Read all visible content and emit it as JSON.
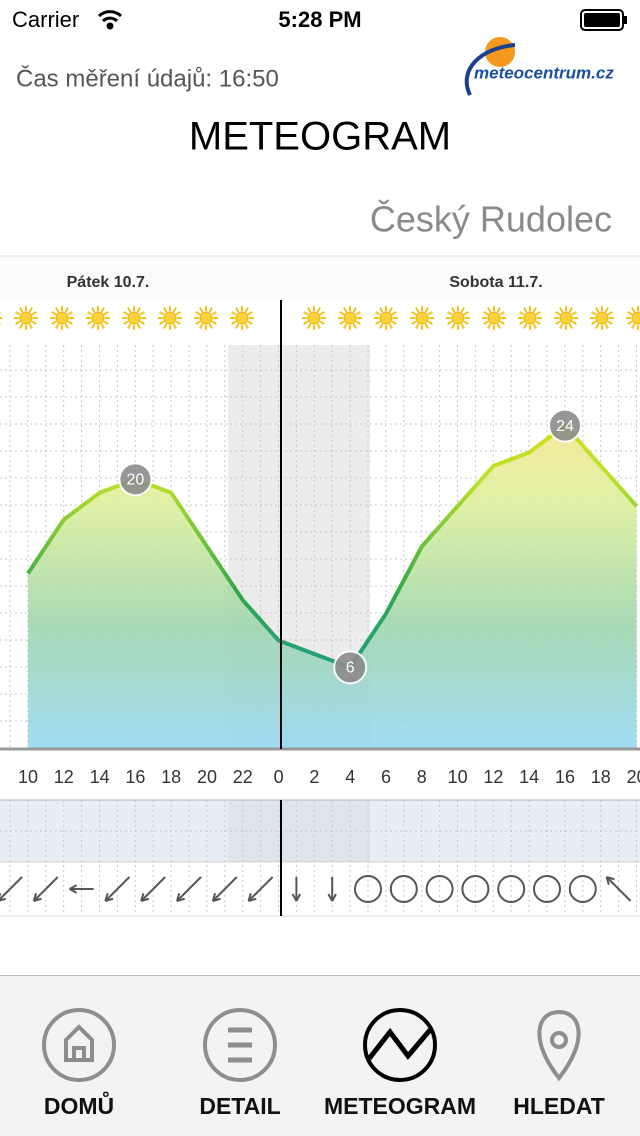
{
  "status_bar": {
    "carrier": "Carrier",
    "time": "5:28 PM"
  },
  "header": {
    "measure_time": "Čas měření údajů: 16:50",
    "logo": "meteocentrum.cz",
    "title": "METEOGRAM"
  },
  "location": "Český Rudolec",
  "chart_data": {
    "type": "line",
    "day_labels": [
      "Pátek 10.7.",
      "Sobota 11.7."
    ],
    "categories": [
      "10",
      "12",
      "14",
      "16",
      "18",
      "20",
      "22",
      "0",
      "2",
      "4",
      "6",
      "8",
      "10",
      "12",
      "14",
      "16",
      "18",
      "20"
    ],
    "values": [
      13,
      17,
      19,
      20,
      19,
      15,
      11,
      8,
      7,
      6,
      10,
      15,
      18,
      21,
      22,
      24,
      21,
      18
    ],
    "ylim": [
      0,
      30
    ]
  },
  "tabs": [
    "DOMŮ",
    "DETAIL",
    "METEOGRAM",
    "HLEDAT"
  ]
}
